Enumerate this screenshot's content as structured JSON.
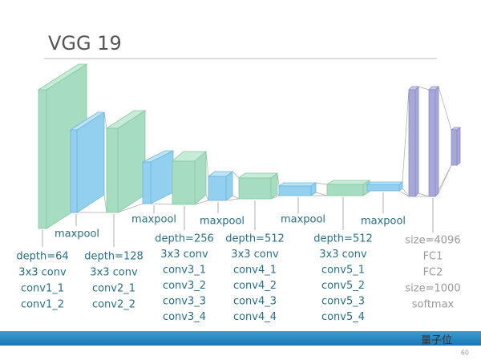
{
  "header": {
    "title": "VGG 19"
  },
  "pool_labels": [
    "maxpool",
    "maxpool",
    "maxpool",
    "maxpool",
    "maxpool"
  ],
  "layer_groups": [
    [
      "depth=64",
      "3x3 conv",
      "conv1_1",
      "conv1_2"
    ],
    [
      "depth=128",
      "3x3 conv",
      "conv2_1",
      "conv2_2"
    ],
    [
      "depth=256",
      "3x3 conv",
      "conv3_1",
      "conv3_2",
      "conv3_3",
      "conv3_4"
    ],
    [
      "depth=512",
      "3x3 conv",
      "conv4_1",
      "conv4_2",
      "conv4_3",
      "conv4_4"
    ],
    [
      "depth=512",
      "3x3 conv",
      "conv5_1",
      "conv5_2",
      "conv5_3",
      "conv5_4"
    ],
    [
      "size=4096",
      "FC1",
      "FC2",
      "size=1000",
      "softmax"
    ]
  ],
  "footer": {
    "watermark": "量子位",
    "page_number": "60"
  }
}
